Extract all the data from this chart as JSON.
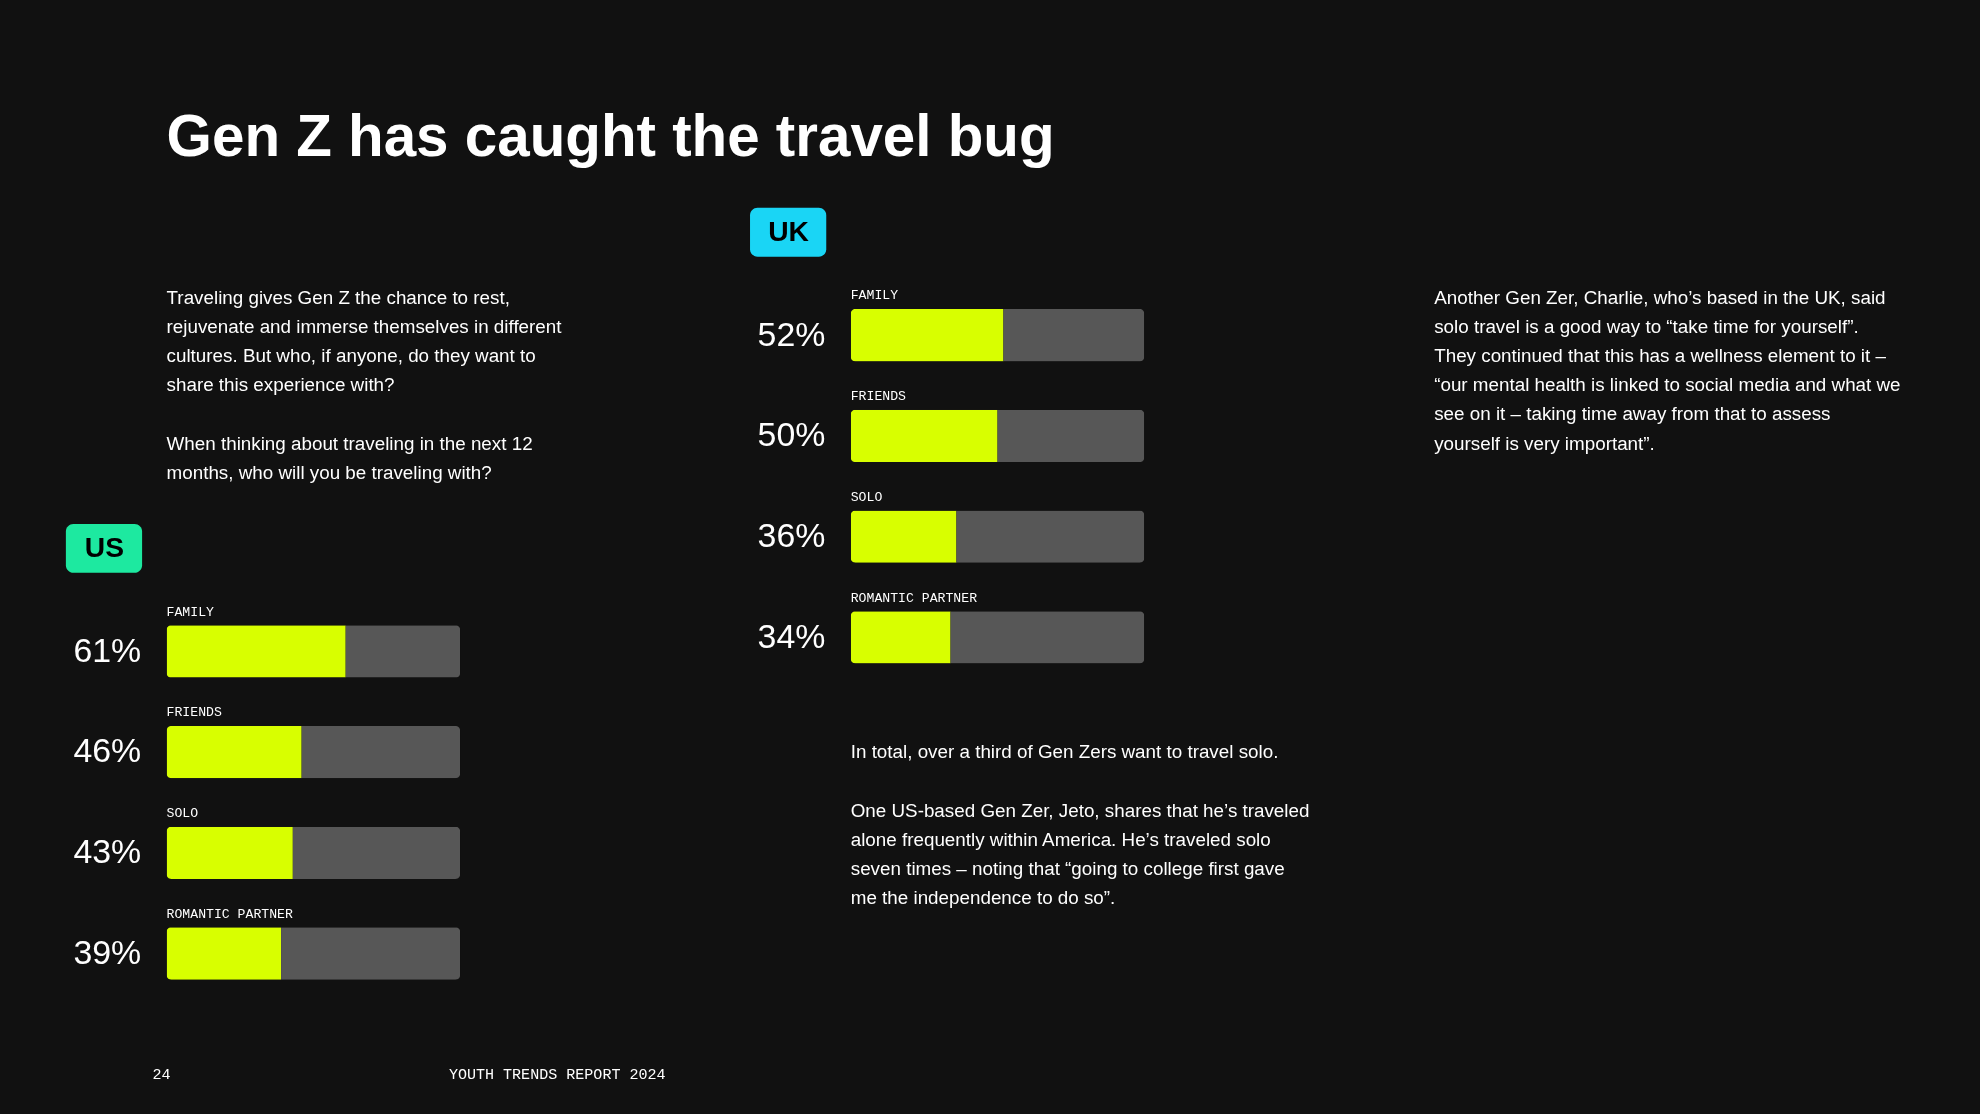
{
  "chart_data": [
    {
      "type": "other",
      "title": "Gen Z has caught the travel bug",
      "annotations": [
        "Traveling gives Gen Z the chance to rest, rejuvenate and immerse themselves in different cultures. But who, if anyone, do they want to share this experience with?",
        "When thinking about traveling in the next 12 months, who will you be traveling with?",
        "24",
        "YOUTH TRENDS REPORT 2024"
      ]
    },
    {
      "type": "bar",
      "title": "US",
      "orientation": "horizontal",
      "stacked": true,
      "xlim": [
        0,
        100
      ],
      "tick_labels": "y",
      "categories": [
        "FAMILY",
        "FRIENDS",
        "SOLO",
        "ROMANTIC PARTNER"
      ],
      "series": [
        {
          "color": "#d8ff00",
          "values": [
            61,
            46,
            43,
            39
          ],
          "value_labels": [
            "61%",
            "46%",
            "43%",
            "39%"
          ]
        },
        {
          "color": "#575757",
          "values": [
            39,
            54,
            57,
            61
          ]
        }
      ]
    },
    {
      "type": "bar",
      "title": "UK",
      "orientation": "horizontal",
      "stacked": true,
      "xlim": [
        0,
        100
      ],
      "tick_labels": "y",
      "categories": [
        "FAMILY",
        "FRIENDS",
        "SOLO",
        "ROMANTIC PARTNER"
      ],
      "series": [
        {
          "color": "#d8ff00",
          "values": [
            52,
            50,
            36,
            34
          ],
          "value_labels": [
            "52%",
            "50%",
            "36%",
            "34%"
          ]
        },
        {
          "color": "#575757",
          "values": [
            48,
            50,
            64,
            66
          ]
        }
      ],
      "annotations": [
        "In total, over a third of Gen Zers want to travel solo.",
        "One US-based Gen Zer, Jeto, shares that he’s traveled alone frequently within America. He’s traveled solo seven times – noting that “going to college first gave me the independence to do so”."
      ]
    },
    {
      "type": "other",
      "annotations": [
        "Another Gen Zer, Charlie, who’s based in the UK, said solo travel is a good way to “take time for yourself”. They continued that this has a wellness element to it – “our mental health is linked to social media and what we see on it – taking time away from that to assess yourself is very important”."
      ]
    }
  ]
}
